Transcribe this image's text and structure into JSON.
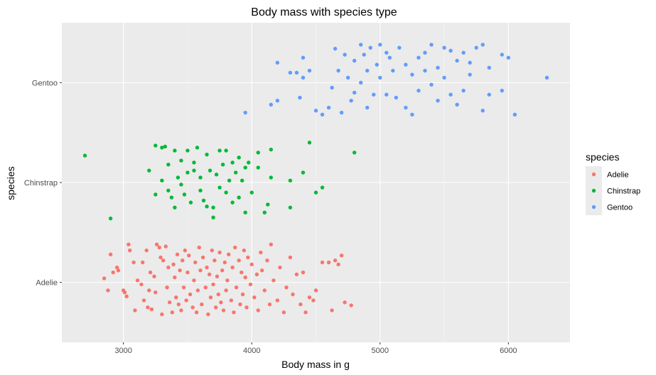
{
  "chart_data": {
    "type": "scatter",
    "title": "Body mass with species type",
    "xlabel": "Body mass in g",
    "ylabel": "species",
    "xlim": [
      2520,
      6480
    ],
    "x_ticks": [
      3000,
      4000,
      5000,
      6000
    ],
    "categories": [
      "Adelie",
      "Chinstrap",
      "Gentoo"
    ],
    "grid": true,
    "legend": {
      "title": "species",
      "position": "right"
    },
    "series": [
      {
        "name": "Adelie",
        "color": "#F8766D",
        "points": [
          {
            "x": 2850,
            "y": 0.04
          },
          {
            "x": 2880,
            "y": -0.08
          },
          {
            "x": 2900,
            "y": 0.28
          },
          {
            "x": 2920,
            "y": 0.1
          },
          {
            "x": 2950,
            "y": 0.15
          },
          {
            "x": 2960,
            "y": 0.12
          },
          {
            "x": 3000,
            "y": -0.08
          },
          {
            "x": 3010,
            "y": -0.1
          },
          {
            "x": 3025,
            "y": -0.14
          },
          {
            "x": 3040,
            "y": 0.38
          },
          {
            "x": 3050,
            "y": 0.32
          },
          {
            "x": 3080,
            "y": 0.2
          },
          {
            "x": 3090,
            "y": -0.28
          },
          {
            "x": 3110,
            "y": 0.02
          },
          {
            "x": 3140,
            "y": -0.02
          },
          {
            "x": 3150,
            "y": 0.2
          },
          {
            "x": 3160,
            "y": -0.18
          },
          {
            "x": 3180,
            "y": 0.32
          },
          {
            "x": 3190,
            "y": -0.25
          },
          {
            "x": 3200,
            "y": -0.08
          },
          {
            "x": 3210,
            "y": 0.1
          },
          {
            "x": 3220,
            "y": -0.27
          },
          {
            "x": 3240,
            "y": 0.06
          },
          {
            "x": 3250,
            "y": -0.1
          },
          {
            "x": 3260,
            "y": 0.38
          },
          {
            "x": 3280,
            "y": 0.35
          },
          {
            "x": 3290,
            "y": 0.25
          },
          {
            "x": 3300,
            "y": -0.32
          },
          {
            "x": 3310,
            "y": 0.22
          },
          {
            "x": 3330,
            "y": 0.36
          },
          {
            "x": 3340,
            "y": -0.05
          },
          {
            "x": 3350,
            "y": 0.15
          },
          {
            "x": 3360,
            "y": -0.2
          },
          {
            "x": 3380,
            "y": -0.3
          },
          {
            "x": 3390,
            "y": 0.18
          },
          {
            "x": 3400,
            "y": 0.05
          },
          {
            "x": 3410,
            "y": -0.15
          },
          {
            "x": 3420,
            "y": 0.28
          },
          {
            "x": 3430,
            "y": -0.22
          },
          {
            "x": 3440,
            "y": 0.12
          },
          {
            "x": 3450,
            "y": -0.28
          },
          {
            "x": 3460,
            "y": 0.22
          },
          {
            "x": 3470,
            "y": -0.05
          },
          {
            "x": 3480,
            "y": 0.32
          },
          {
            "x": 3490,
            "y": -0.18
          },
          {
            "x": 3500,
            "y": 0.1
          },
          {
            "x": 3510,
            "y": 0.27
          },
          {
            "x": 3520,
            "y": -0.12
          },
          {
            "x": 3540,
            "y": -0.25
          },
          {
            "x": 3550,
            "y": 0.02
          },
          {
            "x": 3560,
            "y": 0.2
          },
          {
            "x": 3570,
            "y": -0.3
          },
          {
            "x": 3580,
            "y": -0.08
          },
          {
            "x": 3590,
            "y": 0.35
          },
          {
            "x": 3600,
            "y": 0.12
          },
          {
            "x": 3610,
            "y": -0.22
          },
          {
            "x": 3620,
            "y": 0.25
          },
          {
            "x": 3640,
            "y": -0.05
          },
          {
            "x": 3650,
            "y": 0.15
          },
          {
            "x": 3660,
            "y": -0.32
          },
          {
            "x": 3670,
            "y": 0.08
          },
          {
            "x": 3680,
            "y": -0.15
          },
          {
            "x": 3690,
            "y": 0.32
          },
          {
            "x": 3700,
            "y": -0.02
          },
          {
            "x": 3710,
            "y": 0.22
          },
          {
            "x": 3720,
            "y": -0.25
          },
          {
            "x": 3730,
            "y": 0.06
          },
          {
            "x": 3740,
            "y": -0.12
          },
          {
            "x": 3750,
            "y": 0.3
          },
          {
            "x": 3760,
            "y": -0.2
          },
          {
            "x": 3770,
            "y": 0.12
          },
          {
            "x": 3780,
            "y": -0.28
          },
          {
            "x": 3790,
            "y": 0.2
          },
          {
            "x": 3800,
            "y": -0.08
          },
          {
            "x": 3810,
            "y": 0.02
          },
          {
            "x": 3820,
            "y": 0.28
          },
          {
            "x": 3840,
            "y": -0.18
          },
          {
            "x": 3850,
            "y": 0.15
          },
          {
            "x": 3860,
            "y": -0.3
          },
          {
            "x": 3870,
            "y": 0.35
          },
          {
            "x": 3880,
            "y": -0.05
          },
          {
            "x": 3900,
            "y": 0.22
          },
          {
            "x": 3910,
            "y": -0.22
          },
          {
            "x": 3920,
            "y": 0.1
          },
          {
            "x": 3930,
            "y": -0.12
          },
          {
            "x": 3940,
            "y": 0.32
          },
          {
            "x": 3950,
            "y": 0.05
          },
          {
            "x": 3960,
            "y": -0.25
          },
          {
            "x": 3970,
            "y": 0.25
          },
          {
            "x": 3990,
            "y": -0.02
          },
          {
            "x": 4000,
            "y": 0.18
          },
          {
            "x": 4020,
            "y": -0.15
          },
          {
            "x": 4040,
            "y": 0.08
          },
          {
            "x": 4050,
            "y": -0.28
          },
          {
            "x": 4070,
            "y": 0.3
          },
          {
            "x": 4080,
            "y": 0.12
          },
          {
            "x": 4100,
            "y": -0.08
          },
          {
            "x": 4120,
            "y": 0.22
          },
          {
            "x": 4140,
            "y": -0.22
          },
          {
            "x": 4150,
            "y": 0.38
          },
          {
            "x": 4170,
            "y": 0.02
          },
          {
            "x": 4200,
            "y": -0.18
          },
          {
            "x": 4220,
            "y": 0.15
          },
          {
            "x": 4250,
            "y": -0.3
          },
          {
            "x": 4270,
            "y": -0.05
          },
          {
            "x": 4300,
            "y": 0.25
          },
          {
            "x": 4320,
            "y": -0.12
          },
          {
            "x": 4350,
            "y": 0.08
          },
          {
            "x": 4380,
            "y": -0.22
          },
          {
            "x": 4400,
            "y": 0.1
          },
          {
            "x": 4420,
            "y": -0.3
          },
          {
            "x": 4450,
            "y": -0.15
          },
          {
            "x": 4480,
            "y": -0.18
          },
          {
            "x": 4500,
            "y": -0.08
          },
          {
            "x": 4550,
            "y": 0.2
          },
          {
            "x": 4600,
            "y": 0.2
          },
          {
            "x": 4625,
            "y": -0.28
          },
          {
            "x": 4650,
            "y": 0.22
          },
          {
            "x": 4675,
            "y": 0.18
          },
          {
            "x": 4700,
            "y": 0.27
          },
          {
            "x": 4725,
            "y": -0.2
          },
          {
            "x": 4775,
            "y": -0.23
          }
        ]
      },
      {
        "name": "Chinstrap",
        "color": "#00BA38",
        "points": [
          {
            "x": 2700,
            "y": 0.27
          },
          {
            "x": 2900,
            "y": -0.36
          },
          {
            "x": 3200,
            "y": 0.12
          },
          {
            "x": 3250,
            "y": 0.37
          },
          {
            "x": 3250,
            "y": -0.12
          },
          {
            "x": 3300,
            "y": 0.02
          },
          {
            "x": 3300,
            "y": 0.35
          },
          {
            "x": 3325,
            "y": 0.36
          },
          {
            "x": 3350,
            "y": -0.08
          },
          {
            "x": 3350,
            "y": 0.18
          },
          {
            "x": 3375,
            "y": -0.15
          },
          {
            "x": 3400,
            "y": 0.32
          },
          {
            "x": 3400,
            "y": -0.25
          },
          {
            "x": 3425,
            "y": 0.05
          },
          {
            "x": 3450,
            "y": 0.22
          },
          {
            "x": 3450,
            "y": -0.02
          },
          {
            "x": 3475,
            "y": -0.12
          },
          {
            "x": 3500,
            "y": 0.32
          },
          {
            "x": 3500,
            "y": 0.1
          },
          {
            "x": 3525,
            "y": -0.2
          },
          {
            "x": 3550,
            "y": 0.2
          },
          {
            "x": 3550,
            "y": 0.12
          },
          {
            "x": 3575,
            "y": 0.35
          },
          {
            "x": 3600,
            "y": -0.08
          },
          {
            "x": 3600,
            "y": 0.05
          },
          {
            "x": 3625,
            "y": -0.18
          },
          {
            "x": 3650,
            "y": 0.28
          },
          {
            "x": 3650,
            "y": -0.24
          },
          {
            "x": 3675,
            "y": 0.12
          },
          {
            "x": 3700,
            "y": -0.25
          },
          {
            "x": 3700,
            "y": -0.35
          },
          {
            "x": 3725,
            "y": 0.08
          },
          {
            "x": 3750,
            "y": 0.32
          },
          {
            "x": 3750,
            "y": -0.05
          },
          {
            "x": 3775,
            "y": 0.18
          },
          {
            "x": 3800,
            "y": -0.1
          },
          {
            "x": 3800,
            "y": 0.32
          },
          {
            "x": 3825,
            "y": 0.02
          },
          {
            "x": 3850,
            "y": 0.2
          },
          {
            "x": 3850,
            "y": -0.2
          },
          {
            "x": 3875,
            "y": 0.1
          },
          {
            "x": 3900,
            "y": -0.15
          },
          {
            "x": 3900,
            "y": 0.25
          },
          {
            "x": 3925,
            "y": 0.02
          },
          {
            "x": 3950,
            "y": 0.15
          },
          {
            "x": 3950,
            "y": -0.3
          },
          {
            "x": 3975,
            "y": 0.2
          },
          {
            "x": 4000,
            "y": -0.1
          },
          {
            "x": 4050,
            "y": 0.3
          },
          {
            "x": 4050,
            "y": 0.15
          },
          {
            "x": 4100,
            "y": -0.3
          },
          {
            "x": 4125,
            "y": -0.22
          },
          {
            "x": 4150,
            "y": 0.05
          },
          {
            "x": 4150,
            "y": 0.33
          },
          {
            "x": 4300,
            "y": -0.25
          },
          {
            "x": 4300,
            "y": 0.02
          },
          {
            "x": 4400,
            "y": 0.1
          },
          {
            "x": 4450,
            "y": 0.4
          },
          {
            "x": 4500,
            "y": -0.1
          },
          {
            "x": 4550,
            "y": -0.05
          },
          {
            "x": 4800,
            "y": 0.3
          }
        ]
      },
      {
        "name": "Gentoo",
        "color": "#619CFF",
        "points": [
          {
            "x": 3950,
            "y": -0.3
          },
          {
            "x": 4150,
            "y": -0.22
          },
          {
            "x": 4200,
            "y": -0.18
          },
          {
            "x": 4200,
            "y": 0.2
          },
          {
            "x": 4300,
            "y": 0.1
          },
          {
            "x": 4350,
            "y": 0.1
          },
          {
            "x": 4375,
            "y": -0.15
          },
          {
            "x": 4400,
            "y": 0.25
          },
          {
            "x": 4400,
            "y": 0.05
          },
          {
            "x": 4450,
            "y": 0.12
          },
          {
            "x": 4500,
            "y": -0.28
          },
          {
            "x": 4550,
            "y": -0.32
          },
          {
            "x": 4600,
            "y": -0.25
          },
          {
            "x": 4625,
            "y": -0.05
          },
          {
            "x": 4650,
            "y": 0.34
          },
          {
            "x": 4675,
            "y": 0.12
          },
          {
            "x": 4700,
            "y": -0.3
          },
          {
            "x": 4725,
            "y": 0.28
          },
          {
            "x": 4750,
            "y": 0.05
          },
          {
            "x": 4775,
            "y": -0.18
          },
          {
            "x": 4800,
            "y": 0.22
          },
          {
            "x": 4800,
            "y": -0.1
          },
          {
            "x": 4850,
            "y": 0.38
          },
          {
            "x": 4850,
            "y": 0.0
          },
          {
            "x": 4875,
            "y": 0.28
          },
          {
            "x": 4900,
            "y": -0.25
          },
          {
            "x": 4900,
            "y": 0.12
          },
          {
            "x": 4925,
            "y": 0.35
          },
          {
            "x": 4950,
            "y": -0.12
          },
          {
            "x": 4975,
            "y": 0.18
          },
          {
            "x": 5000,
            "y": 0.38
          },
          {
            "x": 5000,
            "y": 0.05
          },
          {
            "x": 5050,
            "y": 0.3
          },
          {
            "x": 5050,
            "y": -0.12
          },
          {
            "x": 5075,
            "y": 0.25
          },
          {
            "x": 5100,
            "y": 0.12
          },
          {
            "x": 5125,
            "y": -0.15
          },
          {
            "x": 5150,
            "y": 0.35
          },
          {
            "x": 5200,
            "y": 0.18
          },
          {
            "x": 5200,
            "y": -0.25
          },
          {
            "x": 5250,
            "y": -0.32
          },
          {
            "x": 5250,
            "y": 0.08
          },
          {
            "x": 5300,
            "y": 0.25
          },
          {
            "x": 5300,
            "y": -0.08
          },
          {
            "x": 5350,
            "y": 0.12
          },
          {
            "x": 5350,
            "y": 0.3
          },
          {
            "x": 5400,
            "y": -0.02
          },
          {
            "x": 5400,
            "y": 0.38
          },
          {
            "x": 5450,
            "y": 0.15
          },
          {
            "x": 5450,
            "y": -0.18
          },
          {
            "x": 5500,
            "y": 0.35
          },
          {
            "x": 5500,
            "y": 0.05
          },
          {
            "x": 5550,
            "y": -0.12
          },
          {
            "x": 5550,
            "y": 0.32
          },
          {
            "x": 5600,
            "y": 0.22
          },
          {
            "x": 5600,
            "y": -0.22
          },
          {
            "x": 5650,
            "y": 0.3
          },
          {
            "x": 5650,
            "y": -0.08
          },
          {
            "x": 5700,
            "y": 0.2
          },
          {
            "x": 5700,
            "y": 0.08
          },
          {
            "x": 5750,
            "y": 0.35
          },
          {
            "x": 5800,
            "y": 0.38
          },
          {
            "x": 5800,
            "y": -0.28
          },
          {
            "x": 5850,
            "y": 0.15
          },
          {
            "x": 5850,
            "y": -0.12
          },
          {
            "x": 5950,
            "y": 0.28
          },
          {
            "x": 5950,
            "y": -0.08
          },
          {
            "x": 6000,
            "y": 0.25
          },
          {
            "x": 6050,
            "y": -0.32
          },
          {
            "x": 6300,
            "y": 0.05
          }
        ]
      }
    ]
  }
}
